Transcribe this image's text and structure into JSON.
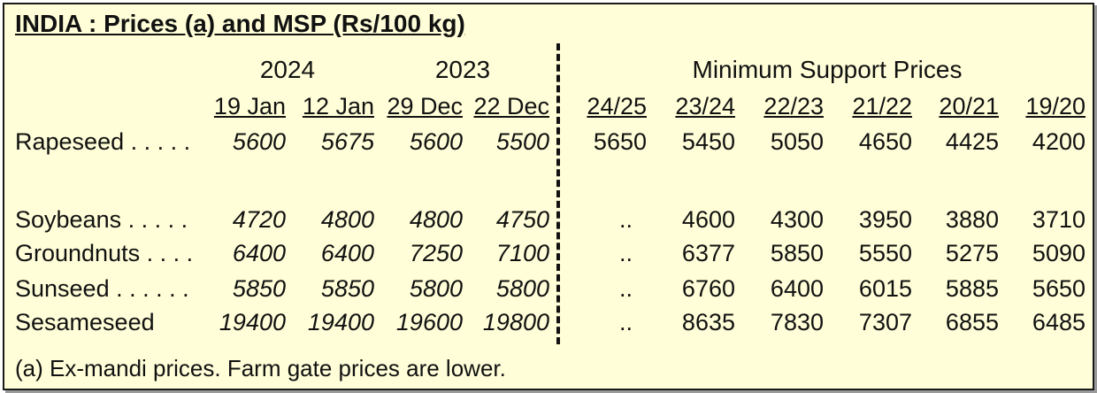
{
  "title": "INDIA : Prices (a) and MSP (Rs/100 kg)",
  "years": [
    "2024",
    "2023"
  ],
  "msp_title": "Minimum Support Prices",
  "price_columns": [
    "19 Jan",
    "12 Jan",
    "29 Dec",
    "22 Dec"
  ],
  "msp_columns": [
    "24/25",
    "23/24",
    "22/23",
    "21/22",
    "20/21",
    "19/20"
  ],
  "rows": [
    {
      "label": "Rapeseed . . . . .",
      "prices": [
        "5600",
        "5675",
        "5600",
        "5500"
      ],
      "msp": [
        "5650",
        "5450",
        "5050",
        "4650",
        "4425",
        "4200"
      ]
    },
    {
      "label": "Soybeans . . . . .",
      "prices": [
        "4720",
        "4800",
        "4800",
        "4750"
      ],
      "msp": [
        "..",
        "4600",
        "4300",
        "3950",
        "3880",
        "3710"
      ]
    },
    {
      "label": "Groundnuts . . . .",
      "prices": [
        "6400",
        "6400",
        "7250",
        "7100"
      ],
      "msp": [
        "..",
        "6377",
        "5850",
        "5550",
        "5275",
        "5090"
      ]
    },
    {
      "label": "Sunseed . . . . . .",
      "prices": [
        "5850",
        "5850",
        "5800",
        "5800"
      ],
      "msp": [
        "..",
        "6760",
        "6400",
        "6015",
        "5885",
        "5650"
      ]
    },
    {
      "label": "Sesameseed",
      "prices": [
        "19400",
        "19400",
        "19600",
        "19800"
      ],
      "msp": [
        "..",
        "8635",
        "7830",
        "7307",
        "6855",
        "6485"
      ]
    }
  ],
  "footnote": "(a) Ex-mandi prices. Farm gate prices are lower."
}
